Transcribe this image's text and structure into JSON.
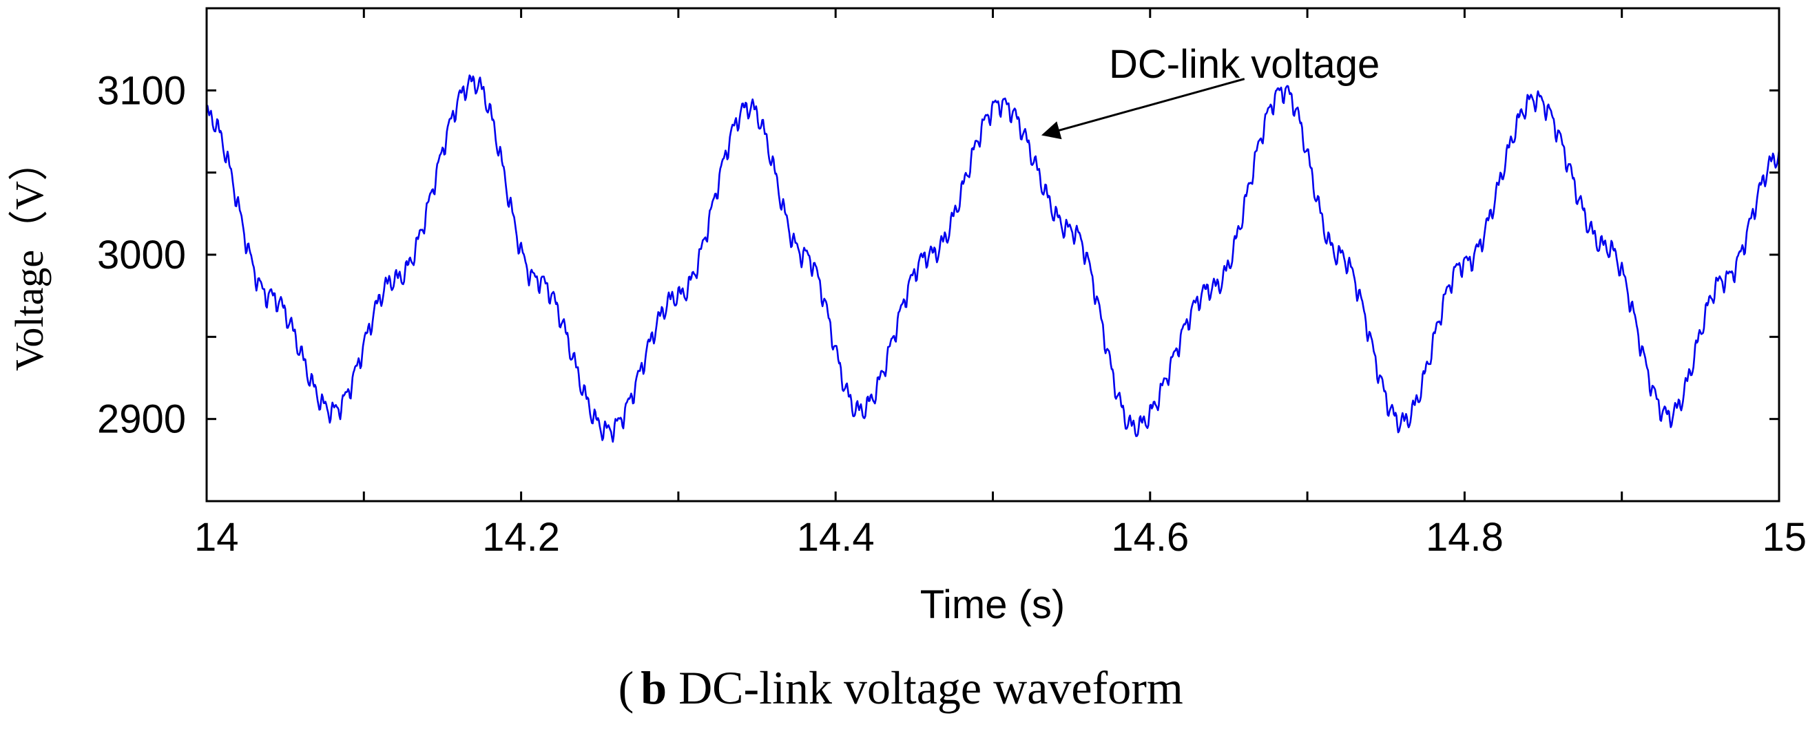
{
  "chart_data": {
    "type": "line",
    "title": "",
    "caption": {
      "letter": "b",
      "text": " DC-link voltage waveform"
    },
    "xlabel": "Time (s)",
    "ylabel": "Voltage（V）",
    "xlim": [
      14,
      15
    ],
    "ylim": [
      2850,
      3150
    ],
    "xticks": [
      14,
      14.1,
      14.2,
      14.3,
      14.4,
      14.5,
      14.6,
      14.7,
      14.8,
      14.9,
      15
    ],
    "xtick_labels": [
      "14",
      "14.2",
      "14.4",
      "14.6",
      "14.8",
      "15"
    ],
    "yticks": [
      2900,
      2950,
      3000,
      3050,
      3100
    ],
    "ytick_labels": [
      "2900",
      "3000",
      "3100"
    ],
    "grid": false,
    "series": [
      {
        "color": "#0000ee",
        "description": "approx. 5.9 Hz oscillation around 3000 V with superimposed high-frequency ripple",
        "x": [
          14.0,
          14.04,
          14.08,
          14.12,
          14.17,
          14.21,
          14.255,
          14.3,
          14.345,
          14.38,
          14.415,
          14.46,
          14.505,
          14.55,
          14.59,
          14.64,
          14.685,
          14.72,
          14.76,
          14.8,
          14.845,
          14.89,
          14.93,
          14.965,
          15.0
        ],
        "y": [
          3085,
          2975,
          2905,
          2985,
          3105,
          2985,
          2893,
          2975,
          3090,
          3000,
          2905,
          3000,
          3092,
          3015,
          2895,
          2980,
          3100,
          3000,
          2898,
          2995,
          3095,
          3005,
          2902,
          2985,
          3060
        ]
      }
    ],
    "annotations": [
      {
        "text": "DC-link voltage",
        "arrow_from": [
          14.66,
          3107
        ],
        "arrow_to": [
          14.532,
          3073
        ]
      }
    ]
  }
}
